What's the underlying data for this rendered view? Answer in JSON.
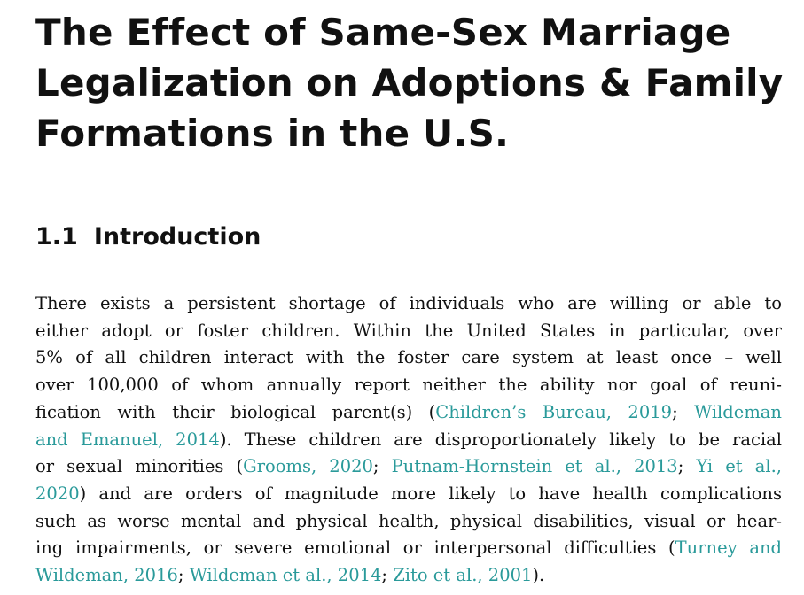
{
  "title_lines": [
    "The Effect of Same-Sex Marriage",
    "Legalization on Adoptions & Family",
    "Formations in the U.S."
  ],
  "section": {
    "number": "1.1",
    "heading": "Introduction"
  },
  "paragraph": {
    "line1": "There exists a persistent shortage of individuals who are willing or able to",
    "line2": "either adopt or foster children. Within the United States in particular, over",
    "line3": "5% of all children interact with the foster care system at least once – well",
    "line4": "over 100,000 of whom annually report neither the ability nor goal of reuni-",
    "line5_text": "fication with their biological parent(s) (",
    "line5_sep": "; ",
    "line6_close": "). These children are disproportionately likely to be racial",
    "line7_text": "or sexual minorities (",
    "line7_sep1": "; ",
    "line7_sep2": "; ",
    "line8_rest": ") and are orders of magnitude more likely to have health complications",
    "line9": "such as worse mental and physical health, physical disabilities, visual or hear-",
    "line10_text": "ing impairments, or severe emotional or interpersonal difficulties (",
    "line11_sep1": "; ",
    "line11_sep2": "; ",
    "line11_end": ")."
  },
  "citations": {
    "childrens_bureau": "Children’s Bureau, 2019",
    "wildeman_emanuel_a": "Wildeman",
    "wildeman_emanuel_b": "and Emanuel, 2014",
    "grooms": "Grooms, 2020",
    "putnam": "Putnam-Hornstein et al., 2013",
    "yi_a": "Yi et al.,",
    "yi_b": "2020",
    "turney_a": "Turney and",
    "turney_b": "Wildeman, 2016",
    "wildeman_etal": "Wildeman et al., 2014",
    "zito": "Zito et al., 2001"
  },
  "colors": {
    "text": "#111111",
    "citation": "#2a9a9a",
    "background": "#ffffff"
  }
}
